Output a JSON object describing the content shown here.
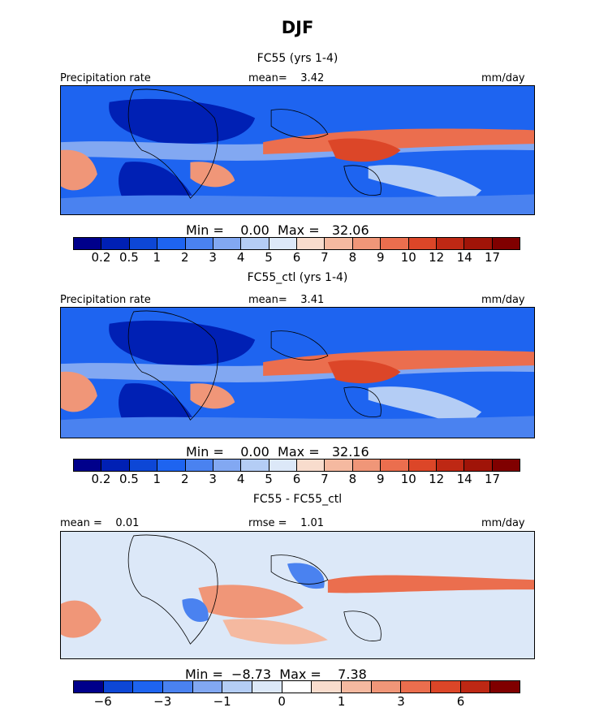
{
  "figure": {
    "title": "DJF"
  },
  "panels": [
    {
      "id": "fc55",
      "subtitle": "FC55 (yrs 1-4)",
      "left_label": "Precipitation rate",
      "center_label": "mean=    3.42",
      "right_label": "mm/day",
      "stats": "Min =    0.00  Max =   32.06",
      "colorbar_ticks": [
        "0.2",
        "0.5",
        "1",
        "2",
        "3",
        "4",
        "5",
        "6",
        "7",
        "8",
        "9",
        "10",
        "12",
        "14",
        "17"
      ]
    },
    {
      "id": "fc55_ctl",
      "subtitle": "FC55_ctl (yrs 1-4)",
      "left_label": "Precipitation rate",
      "center_label": "mean=    3.41",
      "right_label": "mm/day",
      "stats": "Min =    0.00  Max =   32.16",
      "colorbar_ticks": [
        "0.2",
        "0.5",
        "1",
        "2",
        "3",
        "4",
        "5",
        "6",
        "7",
        "8",
        "9",
        "10",
        "12",
        "14",
        "17"
      ]
    },
    {
      "id": "diff",
      "subtitle": "FC55 - FC55_ctl",
      "left_label": "mean =    0.01",
      "center_label": "rmse =    1.01",
      "right_label": "mm/day",
      "stats": "Min =  −8.73  Max =    7.38",
      "colorbar_ticks": [
        "−6",
        "−3",
        "−1",
        "0",
        "1",
        "3",
        "6"
      ]
    }
  ],
  "colors": {
    "precip_scale": [
      "#00008b",
      "#0020b4",
      "#0d47d6",
      "#1e64f0",
      "#4a82f0",
      "#82a8f2",
      "#b4cdf5",
      "#dce8f8",
      "#f8dccd",
      "#f5b9a0",
      "#f09678",
      "#eb6e4e",
      "#dc4628",
      "#be2814",
      "#a01408",
      "#800000"
    ],
    "diff_scale": [
      "#00008b",
      "#0d47d6",
      "#1e64f0",
      "#4a82f0",
      "#82a8f2",
      "#b4cdf5",
      "#dce8f8",
      "#ffffff",
      "#f8dccd",
      "#f5b9a0",
      "#f09678",
      "#eb6e4e",
      "#dc4628",
      "#be2814",
      "#800000"
    ]
  }
}
